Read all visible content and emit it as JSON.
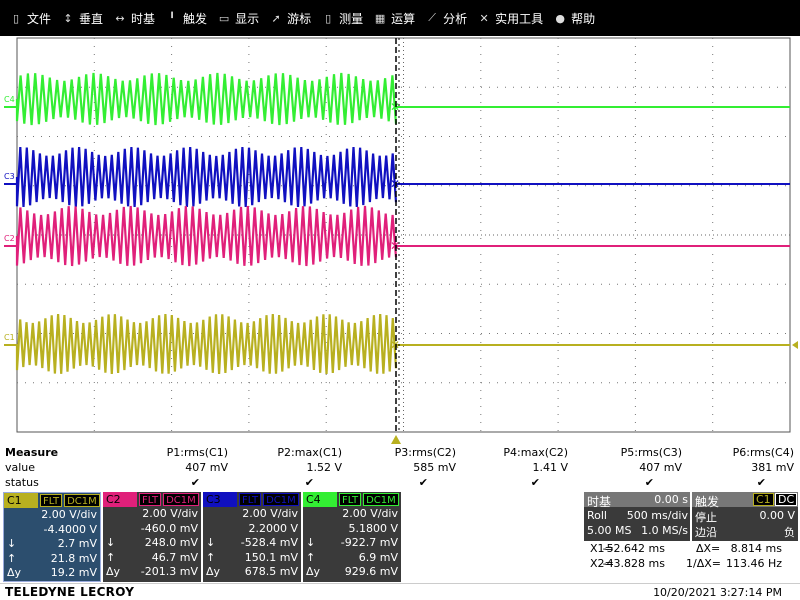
{
  "menu": [
    {
      "label": "文件",
      "icon": "file-icon"
    },
    {
      "label": "垂直",
      "icon": "vertical-arrows-icon"
    },
    {
      "label": "时基",
      "icon": "horizontal-arrows-icon"
    },
    {
      "label": "触发",
      "icon": "trigger-icon"
    },
    {
      "label": "显示",
      "icon": "display-icon"
    },
    {
      "label": "游标",
      "icon": "cursor-icon"
    },
    {
      "label": "测量",
      "icon": "measure-icon"
    },
    {
      "label": "运算",
      "icon": "math-icon"
    },
    {
      "label": "分析",
      "icon": "analysis-icon"
    },
    {
      "label": "实用工具",
      "icon": "tools-icon"
    },
    {
      "label": "帮助",
      "icon": "help-icon"
    }
  ],
  "traces": [
    {
      "label": "C4",
      "color": "#33ee33"
    },
    {
      "label": "C3",
      "color": "#1010c0"
    },
    {
      "label": "C2",
      "color": "#e0207a"
    },
    {
      "label": "C1",
      "color": "#b8b020"
    }
  ],
  "measure": {
    "title": "Measure",
    "row_value": "value",
    "row_status": "status",
    "columns": [
      {
        "name": "P1:rms(C1)",
        "value": "407 mV"
      },
      {
        "name": "P2:max(C1)",
        "value": "1.52 V"
      },
      {
        "name": "P3:rms(C2)",
        "value": "585 mV"
      },
      {
        "name": "P4:max(C2)",
        "value": "1.41 V"
      },
      {
        "name": "P5:rms(C3)",
        "value": "407 mV"
      },
      {
        "name": "P6:rms(C4)",
        "value": "381 mV"
      }
    ]
  },
  "channels": [
    {
      "name": "C1",
      "color": "#b8b020",
      "badge1": "FLT",
      "badge2": "DC1M",
      "vdiv": "2.00 V/div",
      "offset": "-4.4000 V",
      "down": "2.7 mV",
      "up": "21.8 mV",
      "dy": "19.2 mV",
      "selected": true
    },
    {
      "name": "C2",
      "color": "#e0207a",
      "badge1": "FLT",
      "badge2": "DC1M",
      "vdiv": "2.00 V/div",
      "offset": "-460.0 mV",
      "down": "248.0 mV",
      "up": "46.7 mV",
      "dy": "-201.3 mV",
      "selected": false
    },
    {
      "name": "C3",
      "color": "#1010c0",
      "badge1": "FLT",
      "badge2": "DC1M",
      "vdiv": "2.00 V/div",
      "offset": "2.2000 V",
      "down": "-528.4 mV",
      "up": "150.1 mV",
      "dy": "678.5 mV",
      "selected": false
    },
    {
      "name": "C4",
      "color": "#33ee33",
      "badge1": "FLT",
      "badge2": "DC1M",
      "vdiv": "2.00 V/div",
      "offset": "5.1800 V",
      "down": "-922.7 mV",
      "up": "6.9 mV",
      "dy": "929.6 mV",
      "selected": false
    }
  ],
  "channel_labels": {
    "down": "↓",
    "up": "↑",
    "dy": "Δy"
  },
  "timebase": {
    "title": "时基",
    "delay": "0.00 s",
    "mode": "Roll",
    "tdiv": "500 ms/div",
    "samples": "5.00 MS",
    "rate": "1.0 MS/s"
  },
  "trigger": {
    "title": "触发",
    "src": "C1",
    "coupling": "DC",
    "state": "停止",
    "level": "0.00 V",
    "slope_label": "边沿",
    "slope": "负"
  },
  "cursors": {
    "x1_label": "X1=",
    "x1": "-52.642 ms",
    "dx_label": "ΔX=",
    "dx": "8.814 ms",
    "x2_label": "X2=",
    "x2": "-43.828 ms",
    "inv_label": "1/ΔX=",
    "inv": "113.46 Hz"
  },
  "footer": {
    "brand": "TELEDYNE LECROY",
    "datetime": "10/20/2021 3:27:14 PM"
  }
}
